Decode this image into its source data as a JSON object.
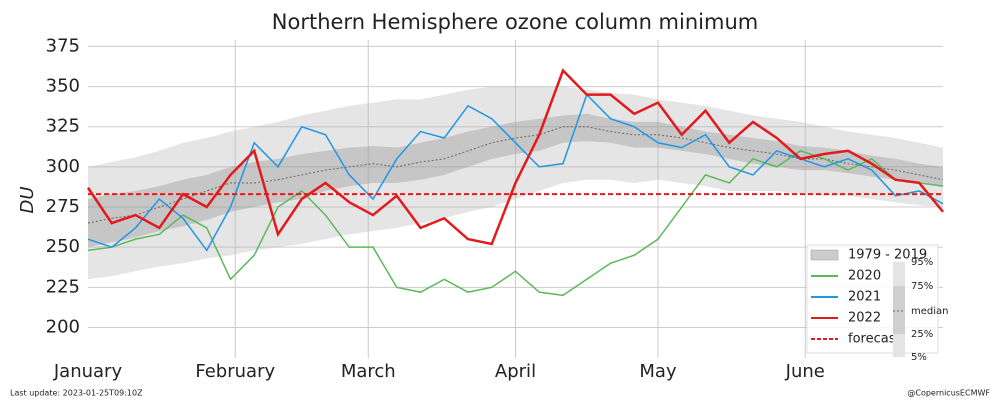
{
  "chart_data": {
    "type": "line",
    "title": "Northern Hemisphere ozone column minimum",
    "y_label": "DU",
    "x": [
      1,
      6,
      11,
      16,
      21,
      26,
      31,
      36,
      41,
      46,
      51,
      56,
      61,
      66,
      71,
      76,
      81,
      86,
      91,
      96,
      101,
      106,
      111,
      116,
      121,
      126,
      131,
      136,
      141,
      146,
      151,
      156,
      161,
      166,
      171,
      176,
      181
    ],
    "xlim": [
      1,
      181
    ],
    "xticks": [
      {
        "value": 1,
        "label": "January"
      },
      {
        "value": 32,
        "label": "February"
      },
      {
        "value": 60,
        "label": "March"
      },
      {
        "value": 91,
        "label": "April"
      },
      {
        "value": 121,
        "label": "May"
      },
      {
        "value": 152,
        "label": "June"
      }
    ],
    "ylim": [
      181,
      379
    ],
    "yticks": [
      200,
      225,
      250,
      275,
      300,
      325,
      350,
      375
    ],
    "grid": true,
    "legend": "lower right",
    "climatology": {
      "name": "1979 - 2019",
      "band_labels": [
        "95%",
        "75%",
        "median",
        "25%",
        "5%"
      ],
      "p5": [
        230,
        232,
        235,
        238,
        240,
        243,
        245,
        248,
        250,
        252,
        255,
        258,
        260,
        262,
        265,
        268,
        272,
        275,
        280,
        285,
        290,
        292,
        292,
        290,
        292,
        290,
        288,
        285,
        285,
        285,
        283,
        282,
        282,
        280,
        278,
        276,
        275
      ],
      "p25": [
        250,
        253,
        256,
        260,
        263,
        267,
        272,
        275,
        278,
        280,
        285,
        288,
        290,
        290,
        292,
        295,
        300,
        305,
        308,
        310,
        315,
        316,
        315,
        312,
        312,
        310,
        308,
        305,
        302,
        300,
        298,
        298,
        296,
        294,
        292,
        290,
        288
      ],
      "median": [
        265,
        268,
        270,
        275,
        280,
        285,
        290,
        290,
        292,
        295,
        298,
        300,
        302,
        300,
        303,
        305,
        310,
        315,
        318,
        320,
        325,
        325,
        322,
        320,
        320,
        318,
        315,
        312,
        310,
        308,
        305,
        305,
        302,
        300,
        298,
        295,
        292
      ],
      "p75": [
        280,
        283,
        285,
        288,
        292,
        295,
        300,
        303,
        305,
        308,
        310,
        312,
        313,
        312,
        315,
        318,
        322,
        325,
        328,
        330,
        332,
        333,
        330,
        328,
        328,
        325,
        322,
        320,
        318,
        316,
        313,
        312,
        310,
        307,
        305,
        302,
        300
      ],
      "p95": [
        300,
        303,
        306,
        310,
        315,
        318,
        322,
        325,
        328,
        332,
        335,
        338,
        340,
        342,
        342,
        345,
        348,
        350,
        350,
        350,
        350,
        348,
        346,
        345,
        342,
        340,
        338,
        335,
        332,
        330,
        328,
        325,
        322,
        320,
        318,
        315,
        312
      ]
    },
    "series": [
      {
        "name": "2020",
        "color": "#5cb85c",
        "values": [
          248,
          250,
          255,
          258,
          270,
          262,
          230,
          245,
          275,
          285,
          270,
          250,
          250,
          225,
          222,
          230,
          222,
          225,
          235,
          222,
          220,
          230,
          240,
          245,
          255,
          275,
          295,
          290,
          305,
          300,
          310,
          305,
          298,
          305,
          292,
          290,
          288
        ]
      },
      {
        "name": "2021",
        "color": "#2196e8",
        "values": [
          255,
          250,
          262,
          280,
          268,
          248,
          275,
          315,
          300,
          325,
          320,
          295,
          280,
          305,
          322,
          318,
          338,
          330,
          315,
          300,
          302,
          345,
          330,
          325,
          315,
          312,
          320,
          300,
          295,
          310,
          305,
          300,
          305,
          298,
          282,
          285,
          277
        ]
      },
      {
        "name": "2022",
        "color": "#e31a1c",
        "values": [
          287,
          265,
          270,
          262,
          283,
          275,
          295,
          310,
          258,
          280,
          290,
          278,
          270,
          282,
          262,
          268,
          255,
          252,
          290,
          320,
          360,
          345,
          345,
          333,
          340,
          320,
          335,
          315,
          328,
          318,
          305,
          308,
          310,
          302,
          292,
          290,
          272
        ]
      }
    ],
    "forecast": {
      "name": "forecast",
      "color": "#e31a1c",
      "value": 283
    },
    "footer_left": "Last update: 2023-01-25T09:10Z",
    "footer_right": "@CopernicusECMWF"
  }
}
